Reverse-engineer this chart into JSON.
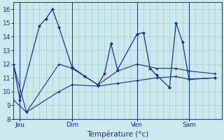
{
  "background_color": "#cce9ee",
  "grid_color": "#9fcdd6",
  "line_color": "#1a3090",
  "x_labels": [
    "Jeu",
    "Dim",
    "Ven",
    "Sam"
  ],
  "xlabel": "Température (°c)",
  "ylim": [
    8,
    16.5
  ],
  "yticks": [
    8,
    9,
    10,
    11,
    12,
    13,
    14,
    15,
    16
  ],
  "xlim": [
    0,
    32
  ],
  "x_tick_positions": [
    1,
    9,
    19,
    27
  ],
  "x_vline_positions": [
    1,
    9,
    19,
    27
  ],
  "line1_x": [
    0,
    1,
    4,
    5,
    6,
    7,
    9,
    11,
    13,
    14,
    15,
    16,
    19,
    20,
    21,
    22,
    24,
    25,
    26,
    27,
    31
  ],
  "line1_y": [
    12.0,
    9.4,
    14.8,
    15.3,
    16.0,
    14.7,
    11.8,
    11.1,
    10.5,
    11.3,
    13.5,
    11.6,
    14.2,
    14.3,
    11.7,
    11.2,
    10.3,
    15.0,
    13.6,
    10.9,
    11.0
  ],
  "line2_x": [
    0,
    2,
    7,
    9,
    13,
    16,
    19,
    22,
    25,
    27,
    31
  ],
  "line2_y": [
    12.0,
    8.5,
    12.0,
    11.7,
    10.5,
    11.5,
    12.0,
    11.7,
    11.7,
    11.5,
    11.3
  ],
  "line3_x": [
    0,
    2,
    7,
    9,
    13,
    16,
    19,
    22,
    25,
    27,
    31
  ],
  "line3_y": [
    9.4,
    8.5,
    10.0,
    10.5,
    10.4,
    10.6,
    10.8,
    11.0,
    11.1,
    10.9,
    11.0
  ],
  "figsize": [
    3.2,
    2.0
  ],
  "dpi": 100
}
